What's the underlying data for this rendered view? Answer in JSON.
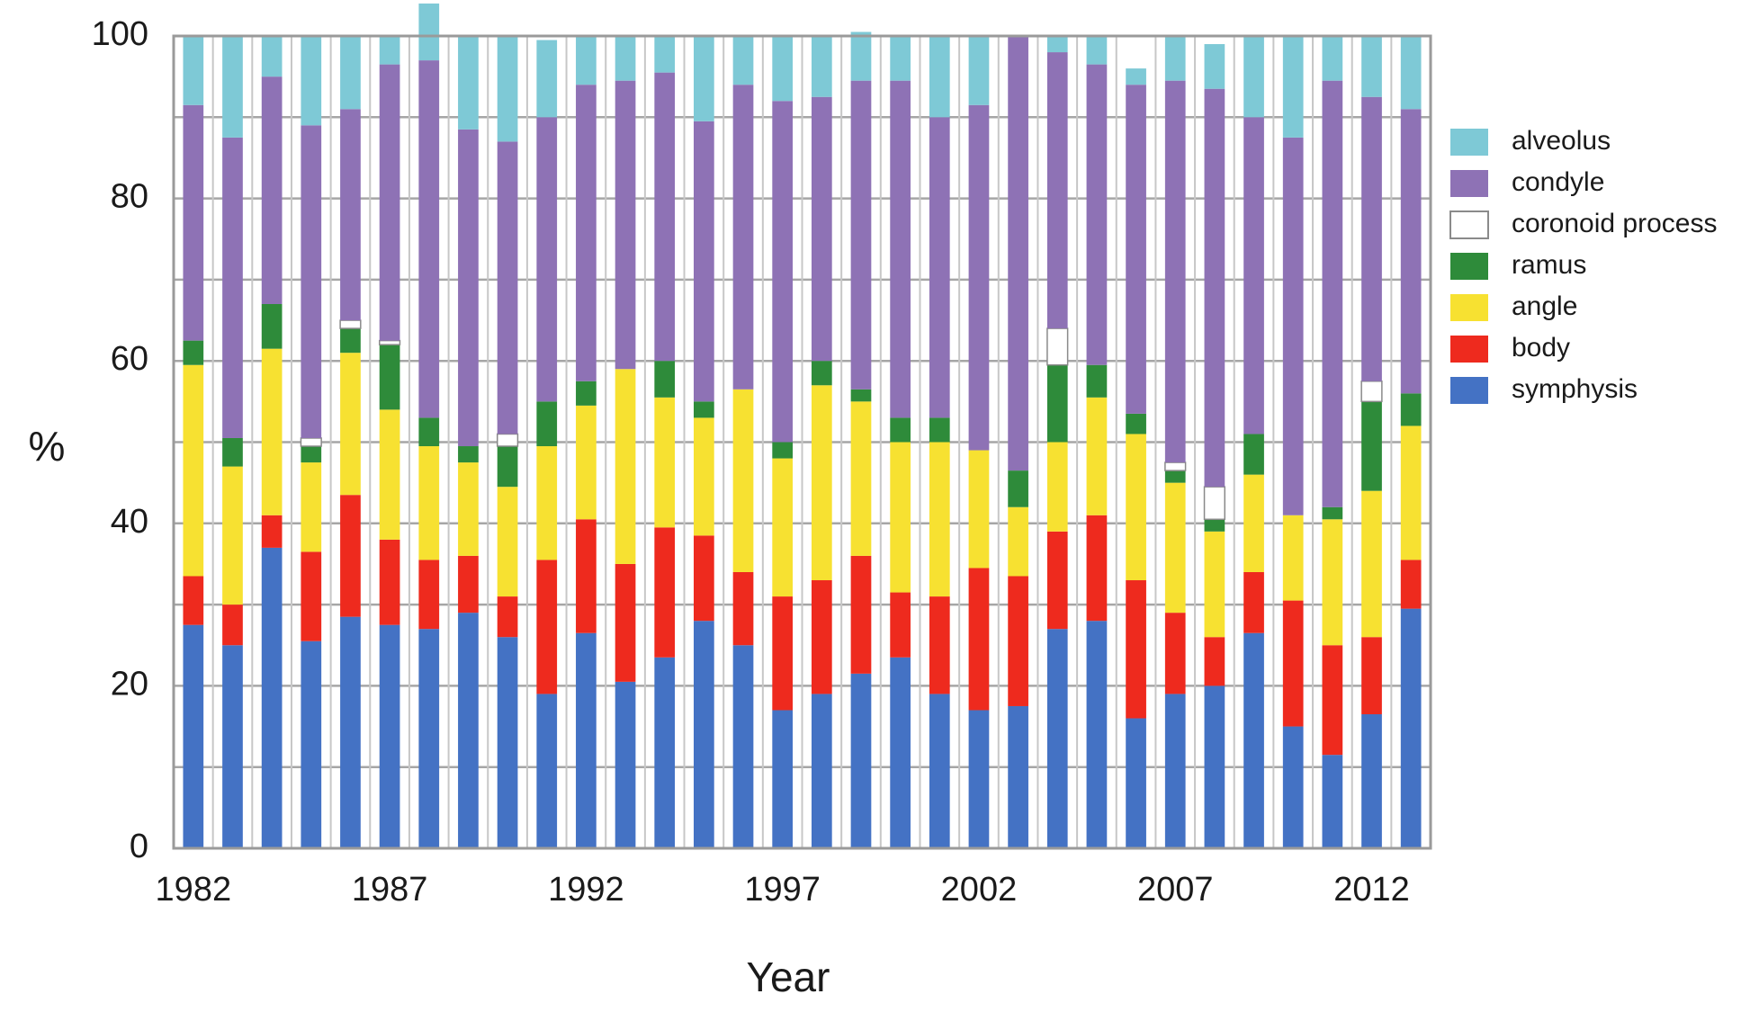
{
  "chart_data": {
    "type": "stacked-bar",
    "title": "",
    "xlabel": "Year",
    "ylabel": "%",
    "ylim": [
      0,
      100
    ],
    "yticks": [
      0,
      20,
      40,
      60,
      80,
      100
    ],
    "grid": true,
    "legend_position": "right",
    "categories": [
      "1982",
      "1983",
      "1984",
      "1985",
      "1986",
      "1987",
      "1988",
      "1989",
      "1990",
      "1991",
      "1992",
      "1993",
      "1994",
      "1995",
      "1996",
      "1997",
      "1998",
      "1999",
      "2000",
      "2001",
      "2002",
      "2003",
      "2004",
      "2005",
      "2006",
      "2007",
      "2008",
      "2009",
      "2010",
      "2011",
      "2012",
      "2013"
    ],
    "xtick_labels": [
      "1982",
      "1987",
      "1992",
      "1997",
      "2002",
      "2007",
      "2012"
    ],
    "series": [
      {
        "name": "symphysis",
        "color": "#4472c4",
        "values": [
          27.5,
          25,
          37,
          25.5,
          28.5,
          27.5,
          27,
          29,
          26,
          19,
          26.5,
          20.5,
          23.5,
          28,
          25,
          17,
          19,
          21.5,
          23.5,
          19,
          17,
          17.5,
          27,
          28,
          16,
          19,
          20,
          26.5,
          15,
          11.5,
          16.5,
          29.5
        ]
      },
      {
        "name": "body",
        "color": "#ee2a1e",
        "values": [
          6,
          5,
          4,
          11,
          15,
          10.5,
          8.5,
          7,
          5,
          16.5,
          14,
          14.5,
          16,
          10.5,
          9,
          14,
          14,
          14.5,
          8,
          12,
          17.5,
          16,
          12,
          13,
          17,
          10,
          6,
          7.5,
          15.5,
          13.5,
          9.5,
          6
        ]
      },
      {
        "name": "angle",
        "color": "#f7e131",
        "values": [
          26,
          17,
          20.5,
          11,
          17.5,
          16,
          14,
          11.5,
          13.5,
          14,
          14,
          24,
          16,
          14.5,
          22.5,
          17,
          24,
          19,
          18.5,
          19,
          14.5,
          8.5,
          11,
          14.5,
          18,
          16,
          13,
          12,
          10.5,
          15.5,
          18,
          16.5
        ]
      },
      {
        "name": "ramus",
        "color": "#2e8b3a",
        "values": [
          3,
          3.5,
          5.5,
          2,
          3,
          8,
          3.5,
          2,
          5,
          5.5,
          3,
          0,
          4.5,
          2,
          0,
          2,
          3,
          1.5,
          3,
          3,
          0,
          4.5,
          9.5,
          4,
          2.5,
          1.5,
          1.5,
          5,
          0,
          1.5,
          11,
          4
        ]
      },
      {
        "name": "coronoid process",
        "color": "#ffffff",
        "values": [
          0,
          0,
          0,
          1,
          1,
          0.5,
          0,
          0,
          1.5,
          0,
          0,
          0,
          0,
          0,
          0,
          0,
          0,
          0,
          0,
          0,
          0,
          0,
          4.5,
          0,
          0,
          1,
          4,
          0,
          0,
          0,
          2.5,
          0
        ]
      },
      {
        "name": "condyle",
        "color": "#8e72b5",
        "values": [
          29,
          37,
          28,
          38.5,
          26,
          34,
          44,
          39,
          36,
          35,
          36.5,
          35.5,
          35.5,
          34.5,
          37.5,
          42,
          32.5,
          38,
          41.5,
          37,
          42.5,
          53.5,
          34,
          37,
          40.5,
          47,
          49,
          39,
          46.5,
          52.5,
          35,
          35
        ]
      },
      {
        "name": "alveolus",
        "color": "#7ec9d6",
        "values": [
          8.5,
          12.5,
          5,
          11,
          9,
          3.5,
          7,
          11.5,
          13,
          9.5,
          6,
          5.5,
          4.5,
          10.5,
          6,
          8,
          7.5,
          6,
          5.5,
          10,
          8.5,
          0,
          2,
          3.5,
          2,
          5.5,
          5.5,
          10,
          12.5,
          5.5,
          7.5,
          9
        ]
      }
    ],
    "legend_order": [
      "alveolus",
      "condyle",
      "coronoid process",
      "ramus",
      "angle",
      "body",
      "symphysis"
    ]
  }
}
